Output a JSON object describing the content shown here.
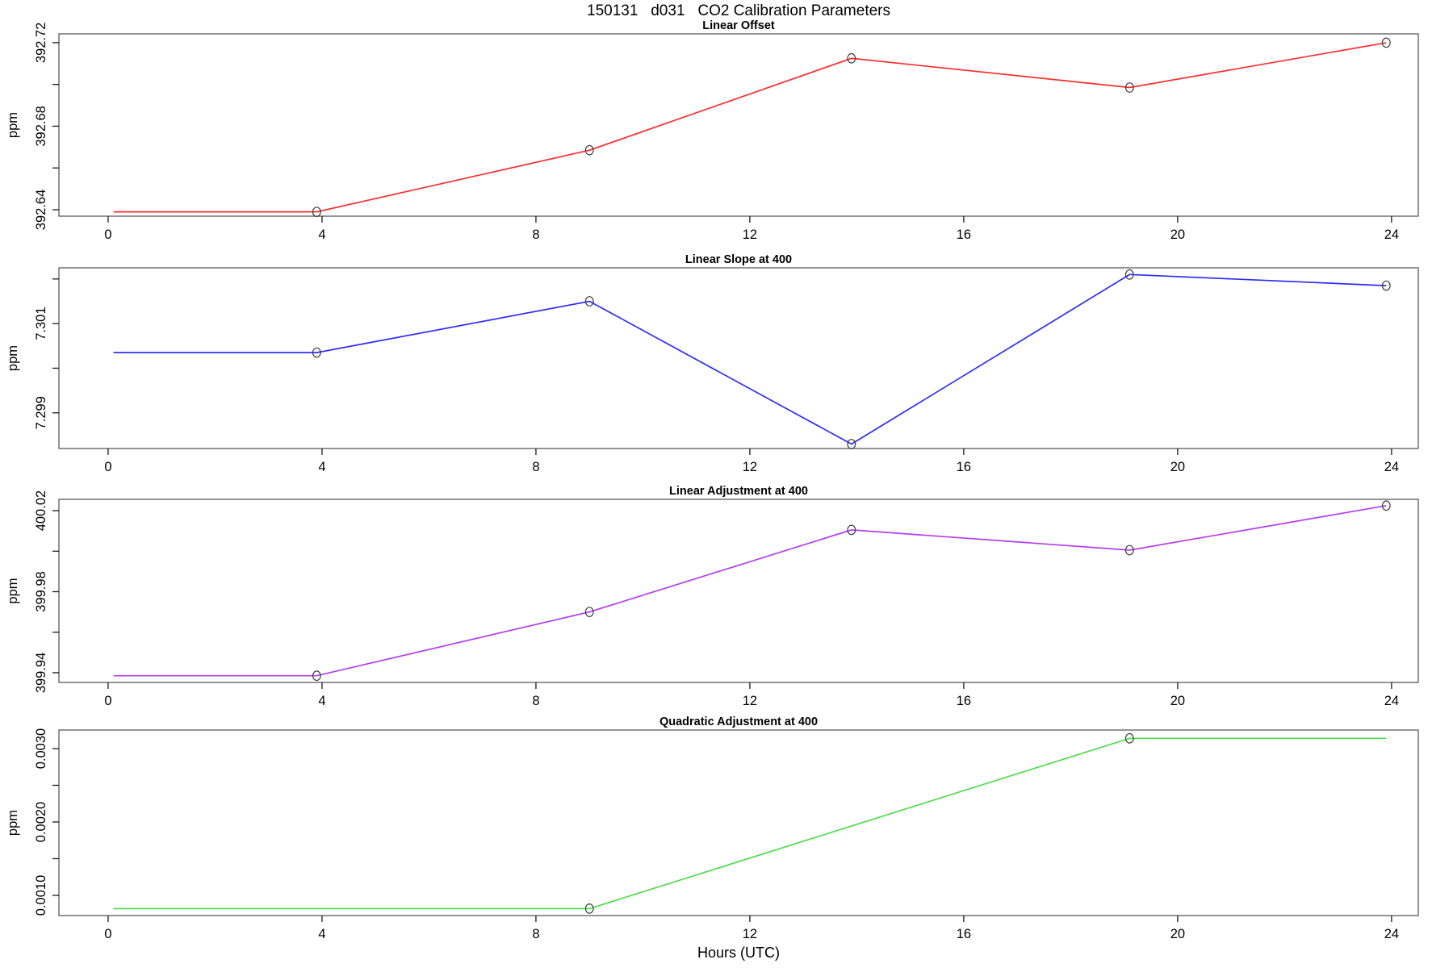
{
  "header": {
    "title": "150131   d031   CO2 Calibration Parameters"
  },
  "axes": {
    "xlabel": "Hours (UTC)",
    "ylabel": "ppm",
    "xlim": [
      -0.92,
      24.5
    ],
    "xticks": [
      {
        "v": 0,
        "label": "0"
      },
      {
        "v": 4,
        "label": "4"
      },
      {
        "v": 8,
        "label": "8"
      },
      {
        "v": 12,
        "label": "12"
      },
      {
        "v": 16,
        "label": "16"
      },
      {
        "v": 20,
        "label": "20"
      },
      {
        "v": 24,
        "label": "24"
      }
    ]
  },
  "style": {
    "box_color": "#5a5a5a",
    "tick_color": "#1a1a1a",
    "marker_color": "#3d3d3d"
  },
  "chart_data": [
    {
      "type": "line",
      "title": "Linear Offset",
      "color": "#ff2d2d",
      "x": [
        0.1,
        3.9,
        9.0,
        13.9,
        19.1,
        23.9
      ],
      "y": [
        392.639,
        392.639,
        392.6685,
        392.7125,
        392.6985,
        392.72
      ],
      "markers": [
        false,
        true,
        true,
        true,
        true,
        true
      ],
      "ylim": [
        392.6369,
        392.7242
      ],
      "yticks": [
        {
          "v": 392.64,
          "label": "392.64"
        },
        {
          "v": 392.66,
          "label": ""
        },
        {
          "v": 392.68,
          "label": "392.68"
        },
        {
          "v": 392.7,
          "label": ""
        },
        {
          "v": 392.72,
          "label": "392.72"
        }
      ]
    },
    {
      "type": "line",
      "title": "Linear Slope at 400",
      "color": "#2d2dff",
      "x": [
        0.1,
        3.9,
        9.0,
        13.9,
        19.1,
        23.9
      ],
      "y": [
        7.30035,
        7.30035,
        7.3015,
        7.2983,
        7.3021,
        7.30185
      ],
      "markers": [
        false,
        true,
        true,
        true,
        true,
        true
      ],
      "ylim": [
        7.2982,
        7.30225
      ],
      "yticks": [
        {
          "v": 7.299,
          "label": "7.299"
        },
        {
          "v": 7.3,
          "label": ""
        },
        {
          "v": 7.301,
          "label": "7.301"
        },
        {
          "v": 7.302,
          "label": ""
        }
      ]
    },
    {
      "type": "line",
      "title": "Linear Adjustment at 400",
      "color": "#b43df0",
      "x": [
        0.1,
        3.9,
        9.0,
        13.9,
        19.1,
        23.9
      ],
      "y": [
        399.9385,
        399.9385,
        399.97,
        400.0105,
        400.0005,
        400.0225
      ],
      "markers": [
        false,
        true,
        true,
        true,
        true,
        true
      ],
      "ylim": [
        399.9352,
        400.0256
      ],
      "yticks": [
        {
          "v": 399.94,
          "label": "399.94"
        },
        {
          "v": 399.96,
          "label": ""
        },
        {
          "v": 399.98,
          "label": "399.98"
        },
        {
          "v": 400.0,
          "label": ""
        },
        {
          "v": 400.02,
          "label": "400.02"
        }
      ]
    },
    {
      "type": "line",
      "title": "Quadratic Adjustment at 400",
      "color": "#4fdc4f",
      "x": [
        0.1,
        3.9,
        9.0,
        19.1,
        23.9
      ],
      "y": [
        0.00082,
        0.00082,
        0.00082,
        0.00314,
        0.00314
      ],
      "markers": [
        false,
        false,
        true,
        true,
        false
      ],
      "ylim": [
        0.000725,
        0.003253
      ],
      "yticks": [
        {
          "v": 0.001,
          "label": "0.0010"
        },
        {
          "v": 0.0015,
          "label": ""
        },
        {
          "v": 0.002,
          "label": "0.0020"
        },
        {
          "v": 0.0025,
          "label": ""
        },
        {
          "v": 0.003,
          "label": "0.0030"
        }
      ]
    }
  ]
}
